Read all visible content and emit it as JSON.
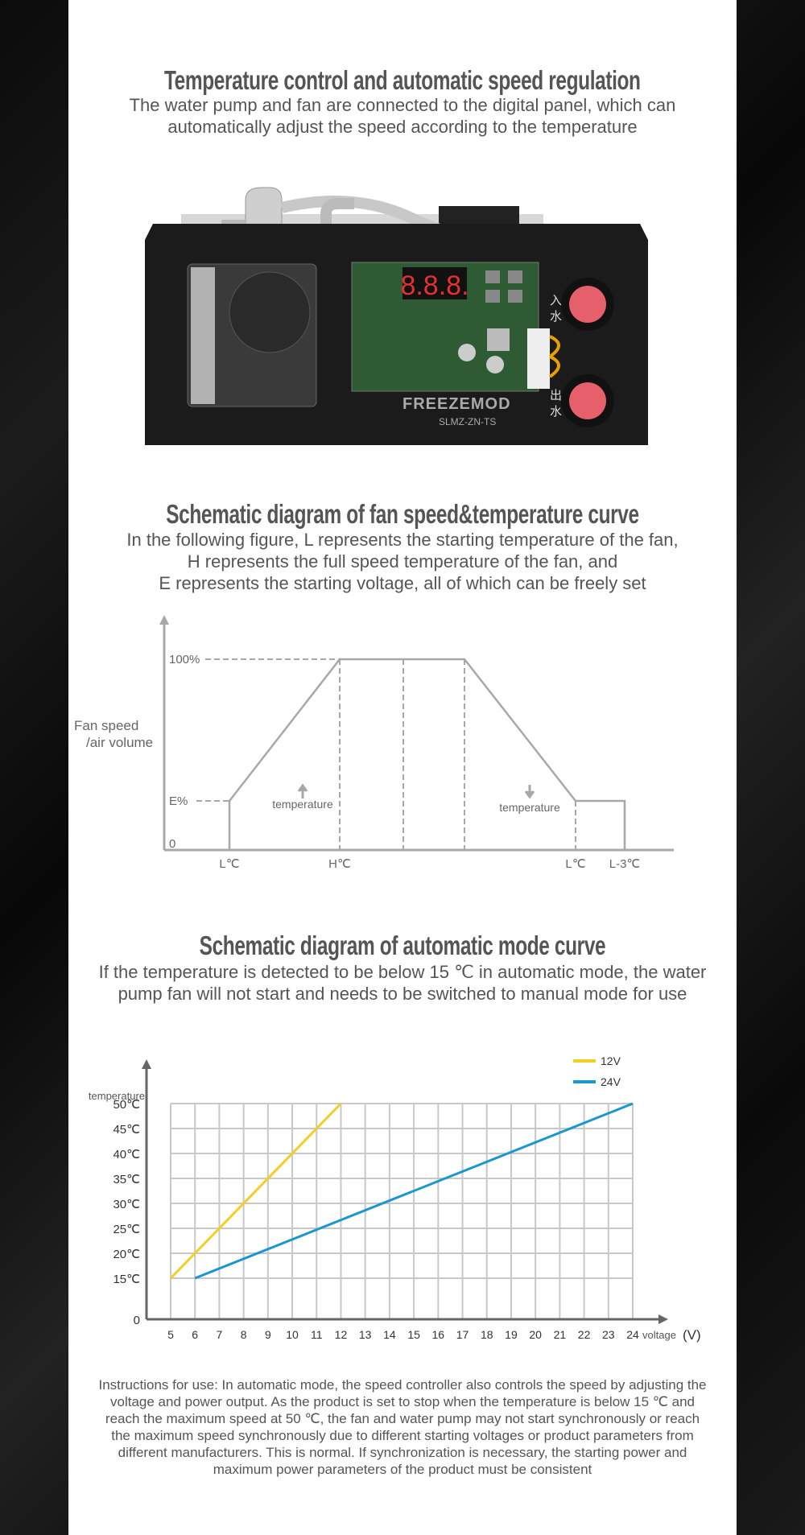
{
  "section1": {
    "title": "Temperature control and automatic speed regulation",
    "subtitle_lines": [
      "The water pump and fan are connected to the digital panel, which can",
      "automatically adjust the speed according to the temperature"
    ]
  },
  "product": {
    "brand": "FREEZEMOD",
    "model": "SLMZ-ZN-TS",
    "inlet_label": [
      "入",
      "水"
    ],
    "outlet_label": [
      "出",
      "水"
    ],
    "display_digits": "8.8.8."
  },
  "section2": {
    "title": "Schematic diagram of fan speed&temperature curve",
    "subtitle_lines": [
      "In the following figure, L represents the starting temperature of the fan,",
      "H represents the full speed temperature of the fan, and",
      "E represents the starting voltage, all of which can be freely set"
    ]
  },
  "section3": {
    "title": "Schematic diagram of automatic mode curve",
    "subtitle_lines": [
      "If the temperature is detected to be below 15 ℃ in automatic mode, the water",
      "pump fan will not start and needs to be switched to manual mode for use"
    ]
  },
  "instructions": "Instructions for use: In automatic mode, the speed controller also controls the speed by adjusting the voltage and power output. As the product is set to stop when the temperature is below 15 ℃ and reach the maximum speed at 50 ℃, the fan and water pump may not start synchronously or reach the maximum speed synchronously due to different starting voltages or product parameters from different manufacturers. This is normal. If synchronization is necessary, the starting power and maximum power parameters of the product must be consistent",
  "chart_data": [
    {
      "type": "line",
      "ylabel_lines": [
        "Fan speed",
        "/air volume"
      ],
      "y_ticks": [
        "100%",
        "E%",
        "0"
      ],
      "x_ticks": [
        "L℃",
        "H℃",
        "L℃",
        "L-3℃"
      ],
      "points": [
        [
          "L℃",
          "0"
        ],
        [
          "L℃",
          "E%"
        ],
        [
          "H℃",
          "100%"
        ],
        [
          "falling start",
          "100%"
        ],
        [
          "L℃",
          "E%"
        ],
        [
          "L-3℃",
          "E%"
        ],
        [
          "L-3℃",
          "0"
        ]
      ],
      "annotations": [
        {
          "text": "temperature",
          "arrow": "up"
        },
        {
          "text": "temperature",
          "arrow": "down"
        }
      ],
      "line_color": "#aaaaaa",
      "grid": false
    },
    {
      "type": "line",
      "ylabel": "temperature",
      "xlabel": "voltage",
      "xunit": "(V)",
      "x_ticks": [
        5,
        6,
        7,
        8,
        9,
        10,
        11,
        12,
        13,
        14,
        15,
        16,
        17,
        18,
        19,
        20,
        21,
        22,
        23,
        24
      ],
      "y_ticks": [
        "50℃",
        "45℃",
        "40℃",
        "35℃",
        "30℃",
        "25℃",
        "20℃",
        "15℃"
      ],
      "y_tick_values": [
        50,
        45,
        40,
        35,
        30,
        25,
        20,
        15
      ],
      "y_origin_label": "0",
      "xlim": [
        5,
        24
      ],
      "ylim": [
        15,
        50
      ],
      "grid": true,
      "legend": "top-right",
      "series": [
        {
          "name": "12V",
          "color": "#f2cf22",
          "x": [
            5,
            12
          ],
          "y": [
            15,
            50
          ]
        },
        {
          "name": "24V",
          "color": "#1c96d0",
          "x": [
            6,
            24
          ],
          "y": [
            15,
            50
          ]
        }
      ]
    }
  ]
}
